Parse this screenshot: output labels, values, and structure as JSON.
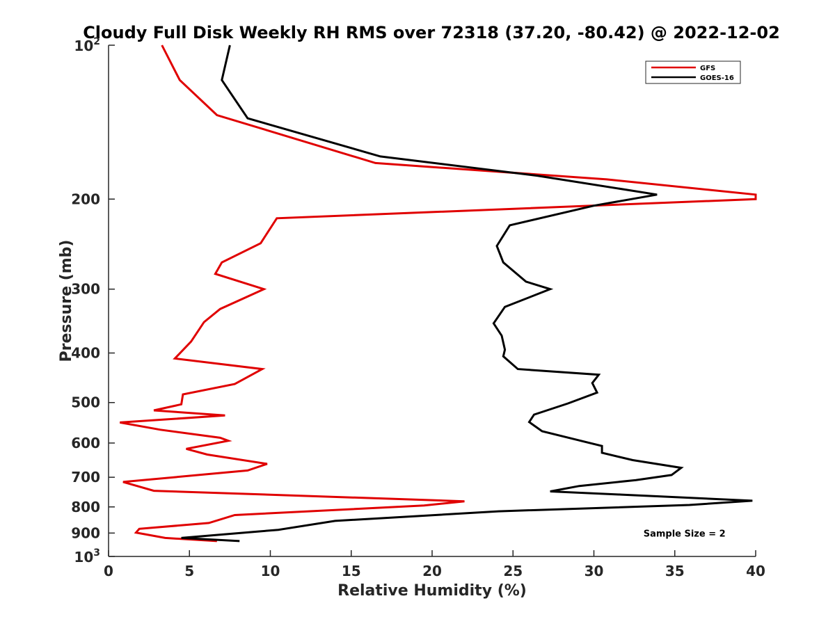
{
  "chart_data": {
    "type": "line",
    "title": "Cloudy Full Disk Weekly RH RMS over 72318 (37.20, -80.42) @ 2022-12-02",
    "xlabel": "Relative Humidity (%)",
    "ylabel": "Pressure (mb)",
    "xlim": [
      0,
      40
    ],
    "ylim": [
      100,
      1000
    ],
    "yscale": "log",
    "y_reversed": true,
    "x_ticks": [
      0,
      5,
      10,
      15,
      20,
      25,
      30,
      35,
      40
    ],
    "x_tick_labels": [
      "0",
      "5",
      "10",
      "15",
      "20",
      "25",
      "30",
      "35",
      "40"
    ],
    "y_ticks": [
      200,
      300,
      400,
      500,
      600,
      700,
      800,
      900
    ],
    "y_tick_labels": [
      "200",
      "300",
      "400",
      "500",
      "600",
      "700",
      "800",
      "900"
    ],
    "y_ticks_power": [
      {
        "value": 100,
        "base": "10",
        "exponent": "2"
      },
      {
        "value": 1000,
        "base": "10",
        "exponent": "3"
      }
    ],
    "grid": false,
    "legend_position": "top-right",
    "annotation": "Sample Size = 2",
    "series": [
      {
        "name": "GFS",
        "color": "#e00000",
        "x": [
          3.3,
          4.4,
          6.7,
          16.5,
          30.8,
          40.0,
          40.0,
          10.4,
          9.4,
          7.0,
          6.6,
          9.6,
          6.9,
          5.9,
          5.1,
          4.1,
          9.5,
          7.8,
          4.6,
          4.5,
          2.8,
          7.2,
          0.7,
          3.2,
          6.9,
          7.4,
          4.8,
          6.1,
          9.8,
          8.6,
          0.9,
          2.8,
          22.0,
          19.5,
          7.8,
          6.2,
          1.9,
          1.7,
          3.5,
          6.7
        ],
        "y": [
          100,
          117,
          137,
          170,
          183,
          196,
          200,
          218,
          244,
          266,
          280,
          300,
          328,
          348,
          380,
          410,
          430,
          460,
          482,
          504,
          518,
          530,
          547,
          565,
          586,
          594,
          616,
          632,
          659,
          679,
          715,
          744,
          780,
          795,
          830,
          860,
          883,
          898,
          920,
          933
        ]
      },
      {
        "name": "GOES-16",
        "color": "#000000",
        "x": [
          7.5,
          7.0,
          8.6,
          16.8,
          26.5,
          33.9,
          30.0,
          24.8,
          24.0,
          24.4,
          25.8,
          27.3,
          24.5,
          23.8,
          24.3,
          24.5,
          24.4,
          25.3,
          30.3,
          29.9,
          30.2,
          28.4,
          26.3,
          26.0,
          26.8,
          29.1,
          30.5,
          30.5,
          32.4,
          35.4,
          34.8,
          32.6,
          29.1,
          27.3,
          31.7,
          39.8,
          35.9,
          24.1,
          14.0,
          10.5,
          4.5,
          8.1
        ],
        "y": [
          100,
          117,
          139,
          165,
          180,
          196,
          206,
          225,
          247,
          266,
          290,
          300,
          325,
          350,
          370,
          394,
          406,
          430,
          441,
          458,
          478,
          502,
          528,
          546,
          569,
          593,
          608,
          627,
          648,
          671,
          693,
          709,
          728,
          746,
          757,
          778,
          793,
          816,
          852,
          887,
          920,
          933
        ]
      }
    ]
  }
}
